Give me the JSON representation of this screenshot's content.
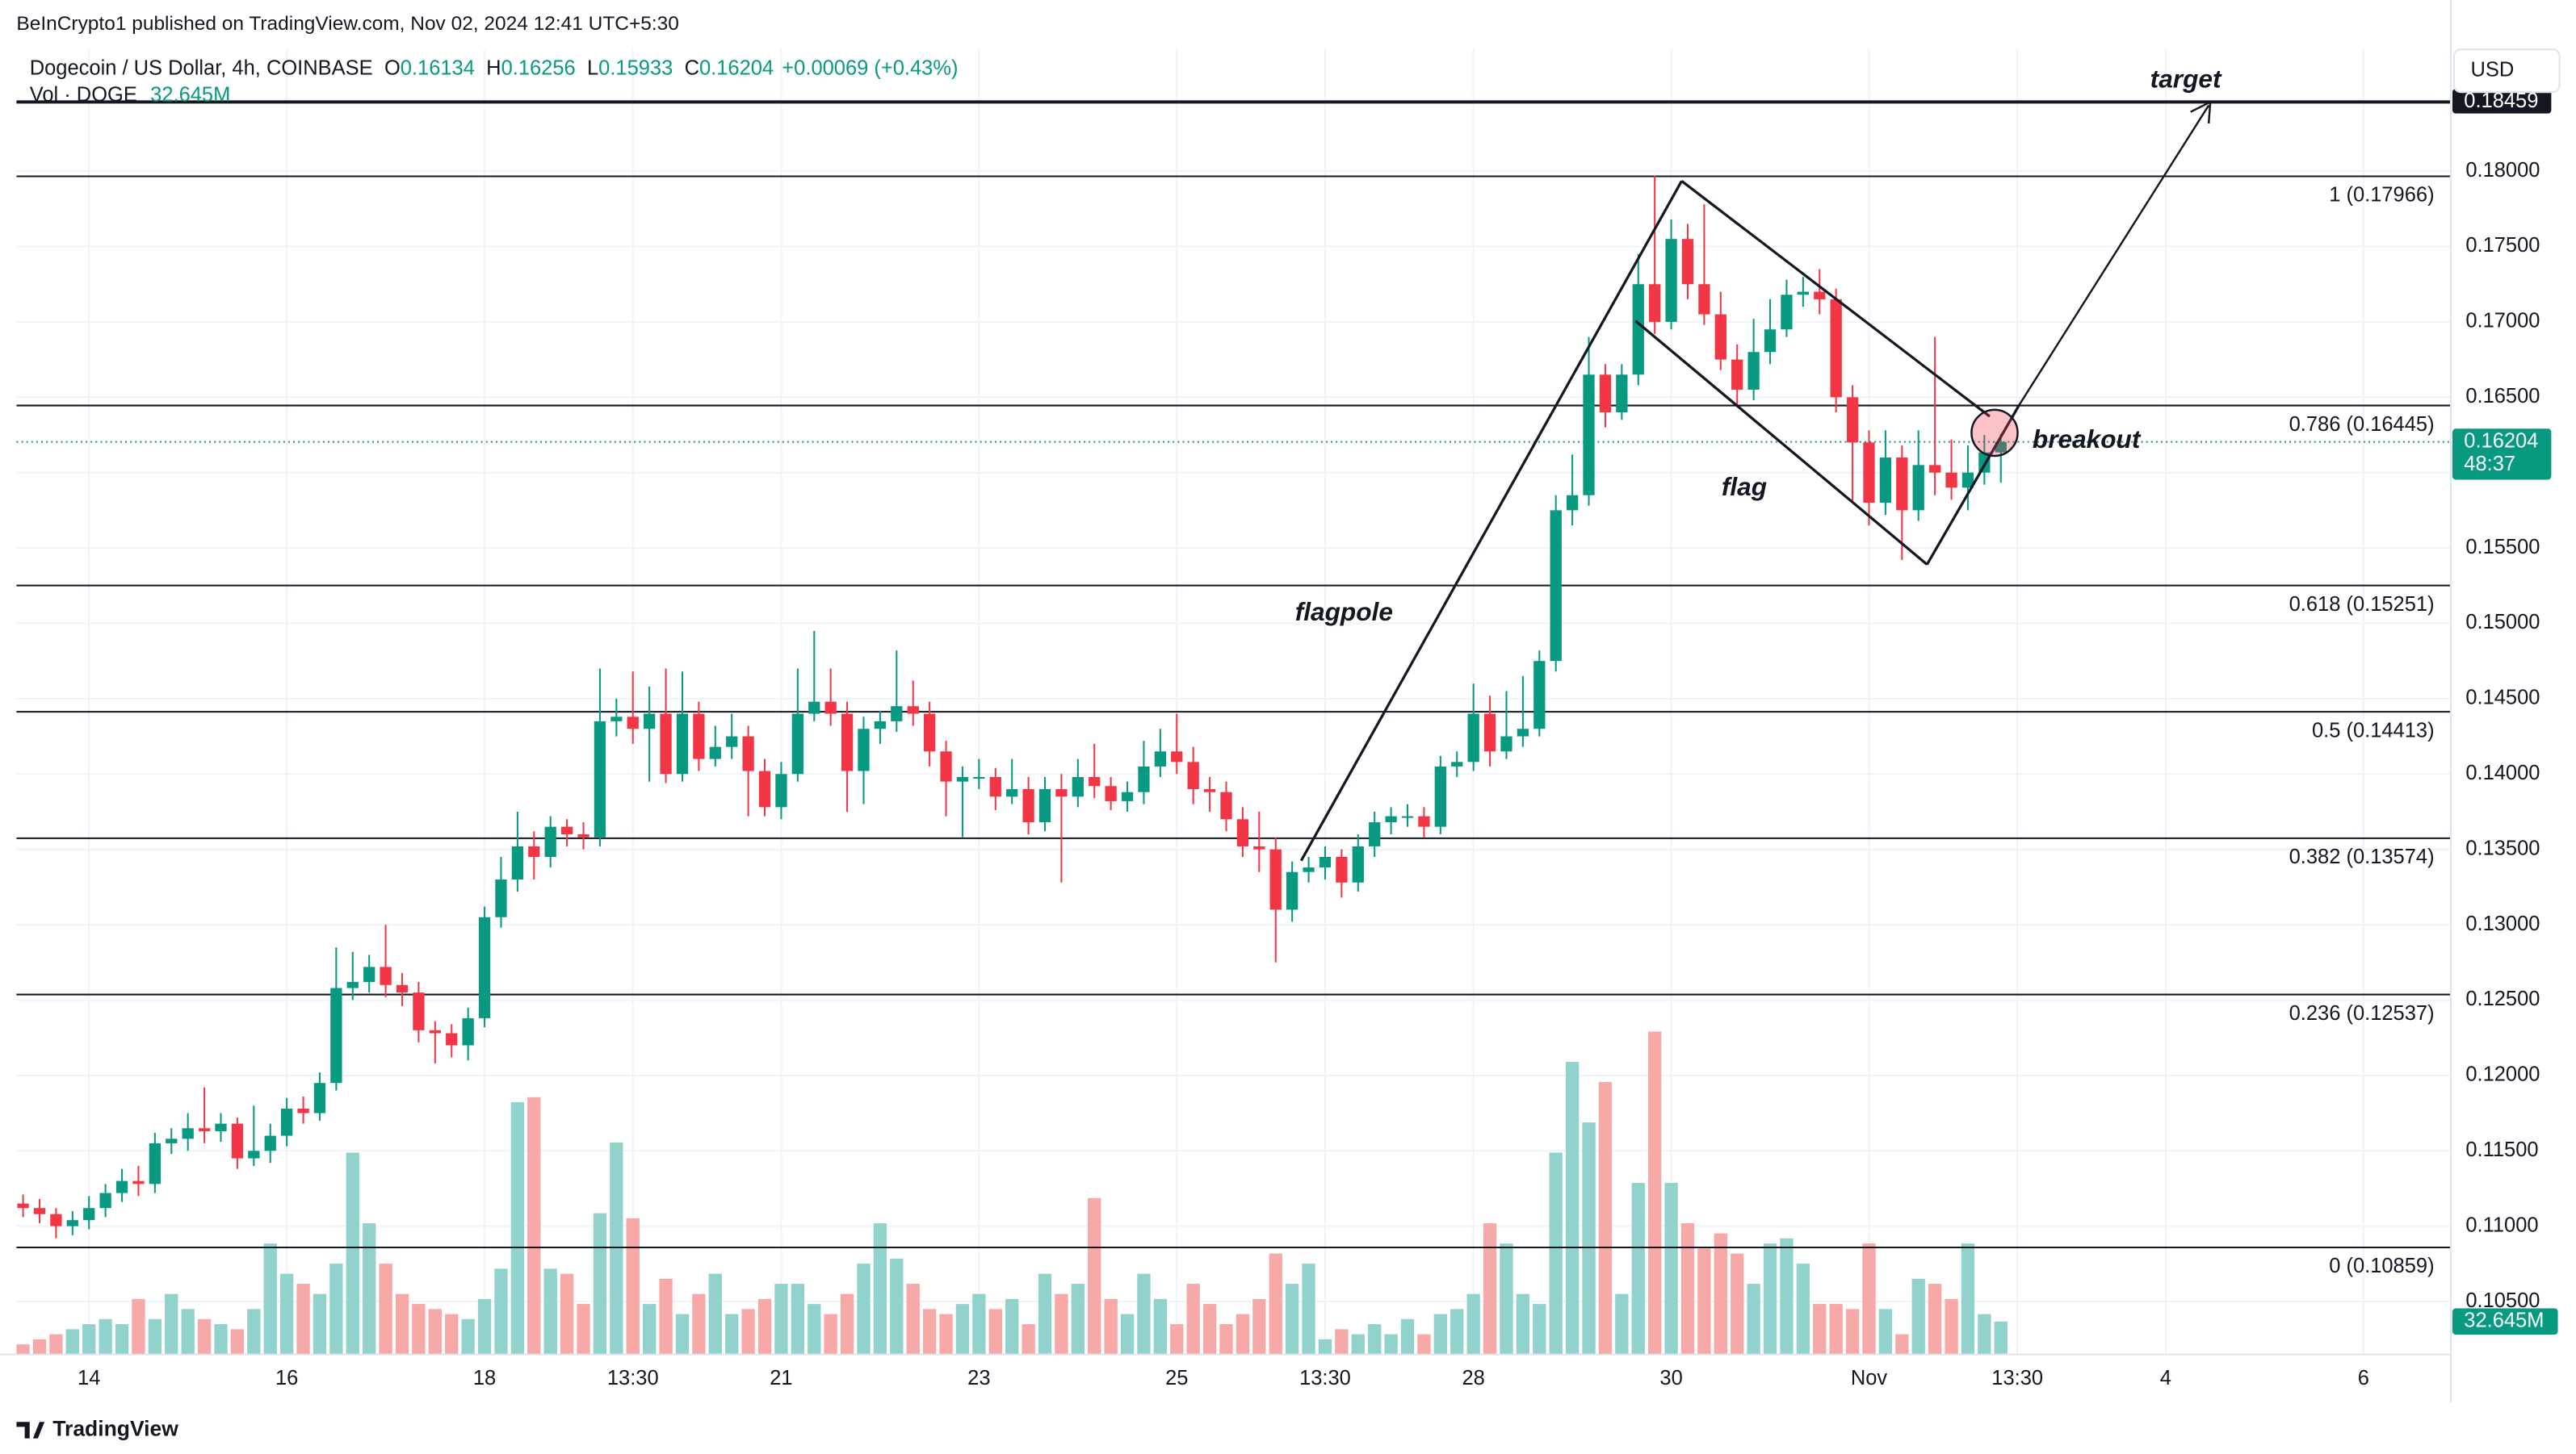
{
  "chart_data": {
    "type": "candlestick",
    "publisher": "BeInCrypto1 published on TradingView.com, Nov 02, 2024 12:41 UTC+5:30",
    "title": "Dogecoin / US Dollar, 4h, COINBASE",
    "ohlc_legend": [
      {
        "label": "O",
        "value": 0.16134
      },
      {
        "label": "H",
        "value": 0.16256
      },
      {
        "label": "L",
        "value": 0.15933
      },
      {
        "label": "C",
        "value": 0.16204
      }
    ],
    "change": "+0.00069 (+0.43%)",
    "volume_name": "Vol · DOGE",
    "volume_label": "32.645M",
    "currency": "USD",
    "countdown": "48:37",
    "footer": "TradingView",
    "up_color": "#089981",
    "down_color": "#f23645",
    "up_volume_color": "#92d2cc",
    "down_volume_color": "#f7a9a7",
    "grid": true,
    "open": [
      0.1115,
      0.1112,
      0.1108,
      0.11,
      0.1104,
      0.1112,
      0.1122,
      0.113,
      0.1128,
      0.1155,
      0.1158,
      0.1165,
      0.1163,
      0.1168,
      0.1145,
      0.115,
      0.116,
      0.1178,
      0.1175,
      0.1195,
      0.1258,
      0.1262,
      0.1272,
      0.126,
      0.1255,
      0.123,
      0.1228,
      0.122,
      0.1238,
      0.1305,
      0.133,
      0.1352,
      0.1345,
      0.1365,
      0.136,
      0.1358,
      0.1435,
      0.1438,
      0.143,
      0.144,
      0.14,
      0.144,
      0.141,
      0.1418,
      0.1425,
      0.1402,
      0.1378,
      0.14,
      0.144,
      0.1448,
      0.144,
      0.1402,
      0.143,
      0.1435,
      0.1445,
      0.144,
      0.1415,
      0.1395,
      0.1398,
      0.1398,
      0.1385,
      0.139,
      0.1368,
      0.139,
      0.1385,
      0.1398,
      0.1392,
      0.1382,
      0.1388,
      0.1405,
      0.1415,
      0.1408,
      0.139,
      0.1388,
      0.137,
      0.1352,
      0.135,
      0.131,
      0.1335,
      0.1338,
      0.1345,
      0.1328,
      0.1352,
      0.1368,
      0.1372,
      0.1372,
      0.1365,
      0.1405,
      0.1408,
      0.144,
      0.1415,
      0.1425,
      0.143,
      0.1475,
      0.1575,
      0.1585,
      0.1665,
      0.164,
      0.1665,
      0.1725,
      0.17,
      0.1755,
      0.1725,
      0.1705,
      0.1675,
      0.1655,
      0.168,
      0.1695,
      0.1718,
      0.172,
      0.1715,
      0.165,
      0.162,
      0.158,
      0.161,
      0.1575,
      0.1605,
      0.16,
      0.159,
      0.16,
      0.16134
    ],
    "high": [
      0.1121,
      0.1118,
      0.1112,
      0.111,
      0.112,
      0.1128,
      0.1138,
      0.114,
      0.1162,
      0.1165,
      0.1175,
      0.1192,
      0.1175,
      0.1172,
      0.118,
      0.1168,
      0.1185,
      0.1186,
      0.1202,
      0.1285,
      0.1282,
      0.128,
      0.13,
      0.1268,
      0.1262,
      0.1236,
      0.1234,
      0.1245,
      0.1312,
      0.1345,
      0.1375,
      0.1362,
      0.1372,
      0.137,
      0.1368,
      0.147,
      0.145,
      0.1468,
      0.1458,
      0.147,
      0.1468,
      0.1448,
      0.1432,
      0.144,
      0.1432,
      0.141,
      0.1408,
      0.147,
      0.1495,
      0.147,
      0.1448,
      0.1438,
      0.1442,
      0.1482,
      0.1462,
      0.1448,
      0.1422,
      0.1405,
      0.141,
      0.1404,
      0.141,
      0.1398,
      0.1398,
      0.14,
      0.141,
      0.142,
      0.1398,
      0.1395,
      0.1422,
      0.143,
      0.144,
      0.1418,
      0.1398,
      0.1395,
      0.1378,
      0.1375,
      0.1358,
      0.1342,
      0.1345,
      0.1352,
      0.135,
      0.136,
      0.1375,
      0.1378,
      0.138,
      0.1378,
      0.1412,
      0.1415,
      0.146,
      0.1452,
      0.1455,
      0.1465,
      0.1482,
      0.1585,
      0.1612,
      0.169,
      0.1672,
      0.1672,
      0.1745,
      0.1797,
      0.1768,
      0.1765,
      0.1778,
      0.172,
      0.1685,
      0.1702,
      0.1715,
      0.1728,
      0.173,
      0.1735,
      0.1722,
      0.1658,
      0.1628,
      0.1628,
      0.1618,
      0.1628,
      0.169,
      0.1622,
      0.1618,
      0.1625,
      0.16256
    ],
    "low": [
      0.1106,
      0.1102,
      0.1092,
      0.1094,
      0.1098,
      0.1106,
      0.1116,
      0.112,
      0.1122,
      0.1148,
      0.115,
      0.1155,
      0.1156,
      0.1138,
      0.114,
      0.1142,
      0.1153,
      0.1168,
      0.117,
      0.119,
      0.125,
      0.1255,
      0.1252,
      0.1246,
      0.1222,
      0.1208,
      0.1212,
      0.121,
      0.1232,
      0.1298,
      0.1322,
      0.133,
      0.1338,
      0.1352,
      0.135,
      0.1352,
      0.1425,
      0.142,
      0.1395,
      0.1394,
      0.1395,
      0.1402,
      0.1405,
      0.141,
      0.1372,
      0.1372,
      0.137,
      0.1395,
      0.1435,
      0.1432,
      0.1375,
      0.138,
      0.142,
      0.1428,
      0.1432,
      0.1405,
      0.1372,
      0.1358,
      0.139,
      0.1376,
      0.138,
      0.136,
      0.1362,
      0.1328,
      0.1378,
      0.1384,
      0.1376,
      0.1375,
      0.138,
      0.1398,
      0.14,
      0.138,
      0.1375,
      0.1362,
      0.1345,
      0.1335,
      0.1275,
      0.1302,
      0.1328,
      0.133,
      0.1318,
      0.1322,
      0.1345,
      0.136,
      0.1365,
      0.1358,
      0.136,
      0.1398,
      0.1402,
      0.1405,
      0.141,
      0.1418,
      0.1425,
      0.1468,
      0.1565,
      0.1578,
      0.163,
      0.1635,
      0.1658,
      0.1692,
      0.1695,
      0.1715,
      0.1698,
      0.1668,
      0.1645,
      0.1648,
      0.1672,
      0.169,
      0.171,
      0.1705,
      0.164,
      0.158,
      0.1565,
      0.1572,
      0.1542,
      0.1568,
      0.1585,
      0.1582,
      0.1575,
      0.1592,
      0.15933
    ],
    "close": [
      0.1112,
      0.1108,
      0.11,
      0.1104,
      0.1112,
      0.1122,
      0.113,
      0.1128,
      0.1155,
      0.1158,
      0.1165,
      0.1163,
      0.1168,
      0.1145,
      0.115,
      0.116,
      0.1178,
      0.1175,
      0.1195,
      0.1258,
      0.1262,
      0.1272,
      0.126,
      0.1255,
      0.123,
      0.1228,
      0.122,
      0.1238,
      0.1305,
      0.133,
      0.1352,
      0.1345,
      0.1365,
      0.136,
      0.1358,
      0.1435,
      0.1438,
      0.143,
      0.144,
      0.14,
      0.144,
      0.141,
      0.1418,
      0.1425,
      0.1402,
      0.1378,
      0.14,
      0.144,
      0.1448,
      0.144,
      0.1402,
      0.143,
      0.1435,
      0.1445,
      0.144,
      0.1415,
      0.1395,
      0.1398,
      0.1398,
      0.1385,
      0.139,
      0.1368,
      0.139,
      0.1385,
      0.1398,
      0.1392,
      0.1382,
      0.1388,
      0.1405,
      0.1415,
      0.1408,
      0.139,
      0.1388,
      0.137,
      0.1352,
      0.135,
      0.131,
      0.1335,
      0.1338,
      0.1345,
      0.1328,
      0.1352,
      0.1368,
      0.1372,
      0.1372,
      0.1365,
      0.1405,
      0.1408,
      0.144,
      0.1415,
      0.1425,
      0.143,
      0.1475,
      0.1575,
      0.1585,
      0.1665,
      0.164,
      0.1665,
      0.1725,
      0.17,
      0.1755,
      0.1725,
      0.1705,
      0.1675,
      0.1655,
      0.168,
      0.1695,
      0.1718,
      0.172,
      0.1715,
      0.165,
      0.162,
      0.158,
      0.161,
      0.1575,
      0.1605,
      0.16,
      0.159,
      0.16,
      0.16134,
      0.16204
    ],
    "volume": [
      10,
      15,
      20,
      25,
      30,
      35,
      30,
      55,
      35,
      60,
      45,
      35,
      30,
      25,
      45,
      110,
      80,
      70,
      60,
      90,
      200,
      130,
      90,
      60,
      50,
      45,
      40,
      35,
      55,
      85,
      250,
      255,
      85,
      80,
      50,
      140,
      210,
      135,
      50,
      75,
      40,
      60,
      80,
      40,
      45,
      55,
      70,
      70,
      50,
      40,
      60,
      90,
      130,
      95,
      70,
      45,
      40,
      50,
      60,
      45,
      55,
      30,
      80,
      60,
      70,
      155,
      55,
      40,
      80,
      55,
      30,
      70,
      50,
      30,
      40,
      55,
      100,
      70,
      90,
      15,
      25,
      20,
      30,
      20,
      35,
      20,
      40,
      45,
      60,
      130,
      110,
      60,
      50,
      200,
      290,
      230,
      270,
      60,
      170,
      320,
      170,
      130,
      105,
      120,
      100,
      70,
      110,
      115,
      90,
      50,
      50,
      45,
      110,
      45,
      20,
      75,
      70,
      55,
      110,
      40,
      32.645
    ],
    "ylim": [
      0.10149,
      0.18808
    ],
    "yticks": [
      {
        "value": 0.105,
        "label": "0.10500"
      },
      {
        "value": 0.11,
        "label": "0.11000"
      },
      {
        "value": 0.115,
        "label": "0.11500"
      },
      {
        "value": 0.12,
        "label": "0.12000"
      },
      {
        "value": 0.125,
        "label": "0.12500"
      },
      {
        "value": 0.13,
        "label": "0.13000"
      },
      {
        "value": 0.135,
        "label": "0.13500"
      },
      {
        "value": 0.14,
        "label": "0.14000"
      },
      {
        "value": 0.145,
        "label": "0.14500"
      },
      {
        "value": 0.15,
        "label": "0.15000"
      },
      {
        "value": 0.155,
        "label": "0.15500"
      },
      {
        "value": 0.16,
        "label": "0.16000"
      },
      {
        "value": 0.165,
        "label": "0.16500"
      },
      {
        "value": 0.17,
        "label": "0.17000"
      },
      {
        "value": 0.175,
        "label": "0.17500"
      },
      {
        "value": 0.18,
        "label": "0.18000"
      }
    ],
    "xlim": [
      -0.4,
      147.3
    ],
    "xticks": [
      {
        "value": 4,
        "label": "14"
      },
      {
        "value": 16,
        "label": "16"
      },
      {
        "value": 28,
        "label": "18"
      },
      {
        "value": 37,
        "label": "13:30"
      },
      {
        "value": 46,
        "label": "21"
      },
      {
        "value": 58,
        "label": "23"
      },
      {
        "value": 70,
        "label": "25"
      },
      {
        "value": 79,
        "label": "13:30"
      },
      {
        "value": 88,
        "label": "28"
      },
      {
        "value": 100,
        "label": "30"
      },
      {
        "value": 112,
        "label": "Nov"
      },
      {
        "value": 121,
        "label": "13:30"
      },
      {
        "value": 130,
        "label": "4"
      },
      {
        "value": 142,
        "label": "6"
      }
    ],
    "fib_levels": [
      {
        "value": 0.17966,
        "label": "1 (0.17966)"
      },
      {
        "value": 0.16445,
        "label": "0.786 (0.16445)"
      },
      {
        "value": 0.15251,
        "label": "0.618 (0.15251)"
      },
      {
        "value": 0.14413,
        "label": "0.5 (0.14413)"
      },
      {
        "value": 0.13574,
        "label": "0.382 (0.13574)"
      },
      {
        "value": 0.12537,
        "label": "0.236 (0.12537)"
      },
      {
        "value": 0.10859,
        "label": "0 (0.10859)"
      }
    ],
    "target_level": 0.18459,
    "annotations": {
      "target": "target",
      "breakout": "breakout",
      "flag": "flag",
      "flagpole": "flagpole"
    }
  }
}
